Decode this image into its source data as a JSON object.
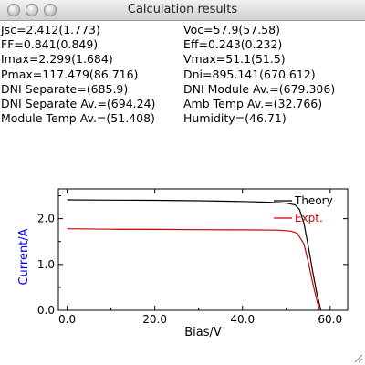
{
  "window": {
    "title": "Calculation results"
  },
  "stats": {
    "left": [
      "Jsc=2.412(1.773)",
      "FF=0.841(0.849)",
      "Imax=2.299(1.684)",
      "Pmax=117.479(86.716)",
      "DNI Separate=(685.9)",
      "DNI Separate Av.=(694.24)",
      "Module Temp Av.=(51.408)"
    ],
    "right": [
      "Voc=57.9(57.58)",
      "Eff=0.243(0.232)",
      "Vmax=51.1(51.5)",
      "Dni=895.141(670.612)",
      "DNI Module Av.=(679.306)",
      "Amb Temp Av.=(32.766)",
      "Humidity=(46.71)"
    ]
  },
  "chart_data": {
    "type": "line",
    "xlabel": "Bias/V",
    "ylabel": "Current/A",
    "xlim": [
      -2,
      64
    ],
    "ylim": [
      0,
      2.65
    ],
    "x_ticks": [
      "0.0",
      "20.0",
      "40.0",
      "60.0"
    ],
    "y_ticks": [
      "0.0",
      "1.0",
      "2.0"
    ],
    "legend_position": "top-right",
    "colors": {
      "ylabel": "#0000ff",
      "theory": "#000000",
      "expt": "#cc0000"
    },
    "series": [
      {
        "name": "Theory",
        "color": "#000000",
        "x": [
          0,
          10,
          20,
          30,
          40,
          46,
          50,
          52,
          53,
          54,
          55,
          56,
          57,
          57.9
        ],
        "y": [
          2.41,
          2.405,
          2.4,
          2.39,
          2.375,
          2.36,
          2.34,
          2.3,
          2.2,
          1.9,
          1.4,
          0.85,
          0.35,
          0
        ]
      },
      {
        "name": "Expt.",
        "color": "#cc0000",
        "x": [
          0,
          10,
          20,
          30,
          40,
          48,
          51,
          52.5,
          54,
          55,
          56,
          57,
          57.58
        ],
        "y": [
          1.78,
          1.77,
          1.765,
          1.76,
          1.755,
          1.75,
          1.73,
          1.68,
          1.45,
          1.05,
          0.6,
          0.2,
          0
        ]
      }
    ]
  }
}
